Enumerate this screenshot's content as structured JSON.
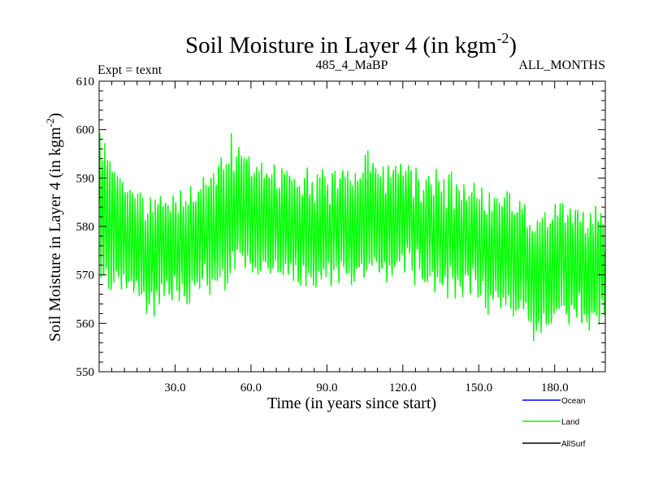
{
  "chart_data": {
    "type": "line",
    "title": "Soil Moisture in Layer 4 (in kgm",
    "title_exponent": "-2",
    "title_close": ")",
    "subtitle_left": "Expt = texnt",
    "subtitle_center": "485_4_MaBP",
    "subtitle_right": "ALL_MONTHS",
    "xlabel": "Time (in years since start)",
    "ylabel": "Soil Moisture in Layer 4 (in kgm",
    "ylabel_exponent": "-2",
    "ylabel_close": ")",
    "xlim": [
      0,
      200
    ],
    "ylim": [
      550,
      610
    ],
    "x_ticks": [
      30,
      60,
      90,
      120,
      150,
      180
    ],
    "x_tick_labels": [
      "30.0",
      "60.0",
      "90.0",
      "120.0",
      "150.0",
      "180.0"
    ],
    "y_ticks": [
      550,
      560,
      570,
      580,
      590,
      600,
      610
    ],
    "y_tick_labels": [
      "550",
      "560",
      "570",
      "580",
      "590",
      "600",
      "610"
    ],
    "x_step_years": 0.0833,
    "series": [
      {
        "name": "Land",
        "color": "#00ff00",
        "annual_mean": {
          "years": [
            0,
            5,
            10,
            15,
            20,
            25,
            30,
            35,
            40,
            45,
            50,
            55,
            60,
            65,
            70,
            75,
            80,
            85,
            90,
            95,
            100,
            105,
            110,
            115,
            120,
            125,
            130,
            135,
            140,
            145,
            150,
            155,
            160,
            165,
            170,
            175,
            180,
            185,
            190,
            195,
            200
          ],
          "mean": [
            584,
            580,
            576,
            575,
            574,
            575,
            576,
            576,
            578,
            580,
            582,
            584,
            583,
            582,
            581,
            580,
            579,
            579,
            579,
            580,
            580,
            581,
            581,
            582,
            581,
            580,
            579,
            578,
            578,
            577,
            576,
            575,
            575,
            573,
            572,
            570,
            572,
            573,
            571,
            571,
            572
          ],
          "amplitude": [
            12,
            11,
            9,
            9,
            9,
            9,
            9,
            9,
            9,
            10,
            11,
            10,
            10,
            9,
            9,
            9,
            9,
            9,
            9,
            9,
            9,
            10,
            9,
            10,
            9,
            9,
            9,
            9,
            9,
            9,
            9,
            9,
            10,
            10,
            10,
            10,
            10,
            10,
            10,
            10,
            10
          ]
        }
      },
      {
        "name": "Ocean",
        "color": "#0000ff"
      },
      {
        "name": "AllSurf",
        "color": "#000000"
      }
    ],
    "legend": {
      "placement": "bottom-right",
      "entries": [
        {
          "label": "Ocean",
          "color": "#0000ff"
        },
        {
          "label": "Land",
          "color": "#00ff00"
        },
        {
          "label": "AllSurf",
          "color": "#000000"
        }
      ]
    }
  }
}
